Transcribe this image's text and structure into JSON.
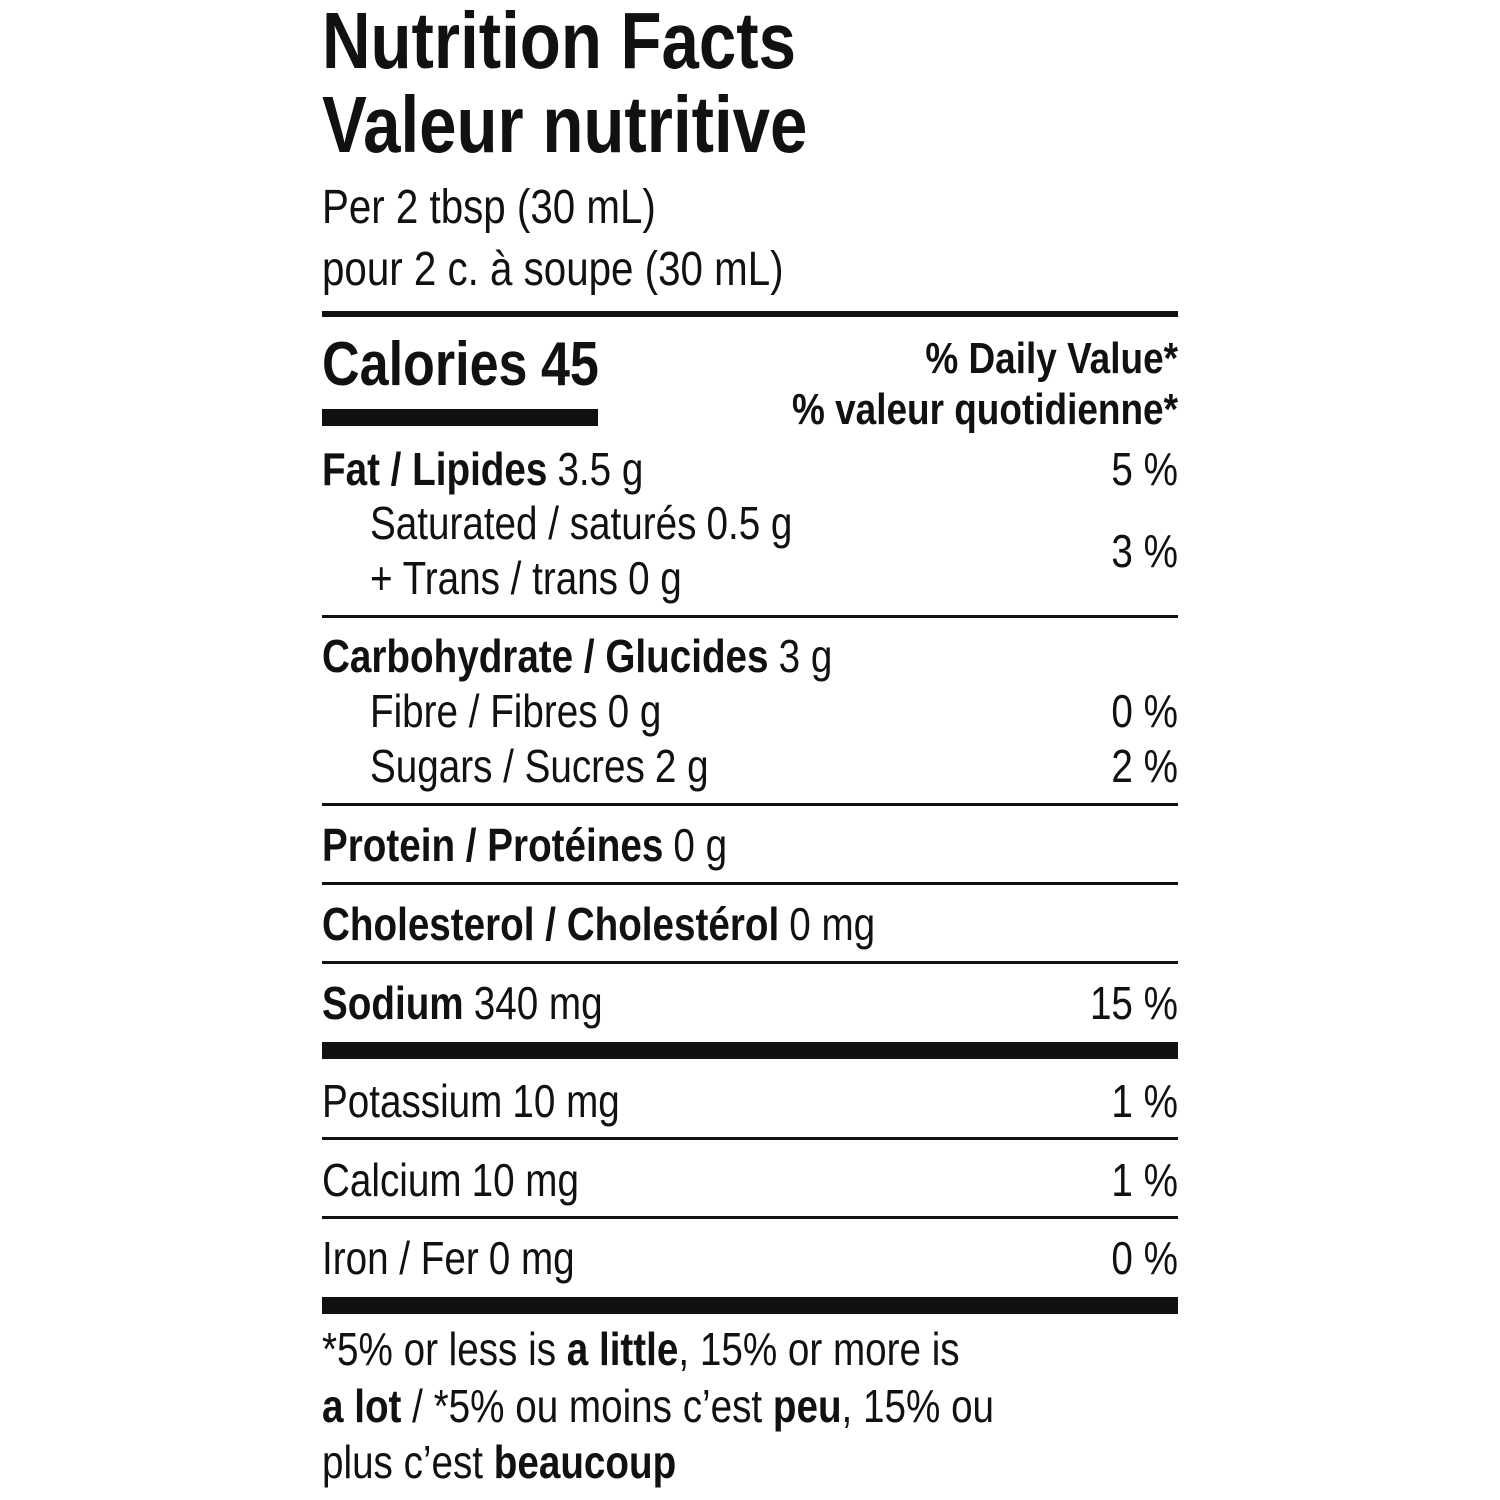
{
  "header": {
    "title_en": "Nutrition Facts",
    "title_fr": "Valeur nutritive",
    "serving_en": "Per 2 tbsp (30 mL)",
    "serving_fr": "pour 2 c. à soupe (30 mL)"
  },
  "calories": {
    "label": "Calories",
    "value": "45"
  },
  "daily_value_header": [
    "% Daily Value*",
    "% valeur quotidienne*"
  ],
  "nutrients": [
    {
      "name": "Fat / Lipides",
      "amount": "3.5 g",
      "dv": "5 %",
      "bold": true
    },
    {
      "name": "Saturated / saturés",
      "amount": "0.5 g",
      "dv": "3 %",
      "bold": false
    },
    {
      "name": "+ Trans / trans",
      "amount": "0 g",
      "bold": false
    },
    {
      "name": "Carbohydrate / Glucides",
      "amount": "3 g",
      "bold": true
    },
    {
      "name": "Fibre / Fibres",
      "amount": "0 g",
      "dv": "0 %",
      "bold": false
    },
    {
      "name": "Sugars / Sucres",
      "amount": "2 g",
      "dv": "2 %",
      "bold": false
    },
    {
      "name": "Protein / Protéines",
      "amount": "0 g",
      "bold": true
    },
    {
      "name": "Cholesterol / Cholestérol",
      "amount": "0 mg",
      "bold": true
    },
    {
      "name": "Sodium",
      "amount": "340 mg",
      "dv": "15 %",
      "bold": true
    },
    {
      "name": "Potassium",
      "amount": "10 mg",
      "dv": "1 %",
      "bold": false
    },
    {
      "name": "Calcium",
      "amount": "10 mg",
      "dv": "1 %",
      "bold": false
    },
    {
      "name": "Iron / Fer",
      "amount": "0 mg",
      "dv": "0 %",
      "bold": false
    }
  ],
  "footnote": [
    [
      {
        "text": "*5% or less is ",
        "bold": false
      },
      {
        "text": "a little",
        "bold": true
      },
      {
        "text": ", 15% or more is",
        "bold": false
      }
    ],
    [
      {
        "text": "a lot",
        "bold": true
      },
      {
        "text": " / *5% ou moins c’est ",
        "bold": false
      },
      {
        "text": "peu",
        "bold": true
      },
      {
        "text": ", 15% ou",
        "bold": false
      }
    ],
    [
      {
        "text": "plus c’est ",
        "bold": false
      },
      {
        "text": "beaucoup",
        "bold": true
      }
    ]
  ]
}
